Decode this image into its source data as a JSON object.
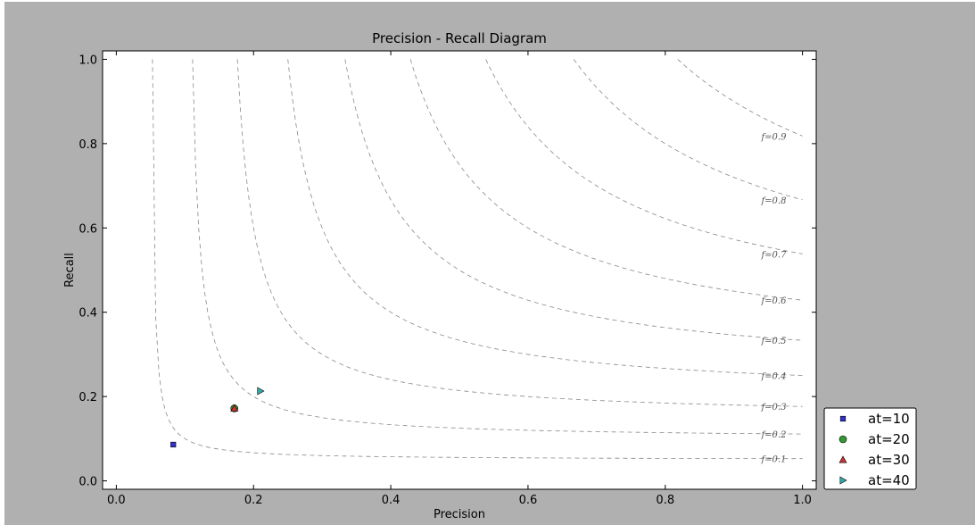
{
  "colors": {
    "frame_background": "#b0b0b0",
    "plot_background": "#ffffff",
    "iso_curve": "#888888"
  },
  "chart_data": {
    "type": "scatter",
    "title": "Precision - Recall Diagram",
    "xlabel": "Precision",
    "ylabel": "Recall",
    "xlim": [
      -0.02,
      1.02
    ],
    "ylim": [
      -0.02,
      1.02
    ],
    "x_ticks": [
      0.0,
      0.2,
      0.4,
      0.6,
      0.8,
      1.0
    ],
    "x_tick_labels": [
      "0.0",
      "0.2",
      "0.4",
      "0.6",
      "0.8",
      "1.0"
    ],
    "y_ticks": [
      0.0,
      0.2,
      0.4,
      0.6,
      0.8,
      1.0
    ],
    "y_tick_labels": [
      "0.0",
      "0.2",
      "0.4",
      "0.6",
      "0.8",
      "1.0"
    ],
    "grid": false,
    "legend_position": "lower-right outside",
    "iso_f_curves": [
      {
        "f": 0.1,
        "label": "f=0.1"
      },
      {
        "f": 0.2,
        "label": "f=0.2"
      },
      {
        "f": 0.3,
        "label": "f=0.3"
      },
      {
        "f": 0.4,
        "label": "f=0.4"
      },
      {
        "f": 0.5,
        "label": "f=0.5"
      },
      {
        "f": 0.6,
        "label": "f=0.6"
      },
      {
        "f": 0.7,
        "label": "f=0.7"
      },
      {
        "f": 0.8,
        "label": "f=0.8"
      },
      {
        "f": 0.9,
        "label": "f=0.9"
      }
    ],
    "series": [
      {
        "name": "at=10",
        "marker": "square",
        "color": "#3333cc",
        "x": 0.083,
        "y": 0.086
      },
      {
        "name": "at=20",
        "marker": "circle",
        "color": "#339933",
        "x": 0.172,
        "y": 0.172
      },
      {
        "name": "at=30",
        "marker": "triangle-up",
        "color": "#cc3333",
        "x": 0.172,
        "y": 0.172
      },
      {
        "name": "at=40",
        "marker": "triangle-right",
        "color": "#33aaaa",
        "x": 0.21,
        "y": 0.213
      }
    ]
  }
}
